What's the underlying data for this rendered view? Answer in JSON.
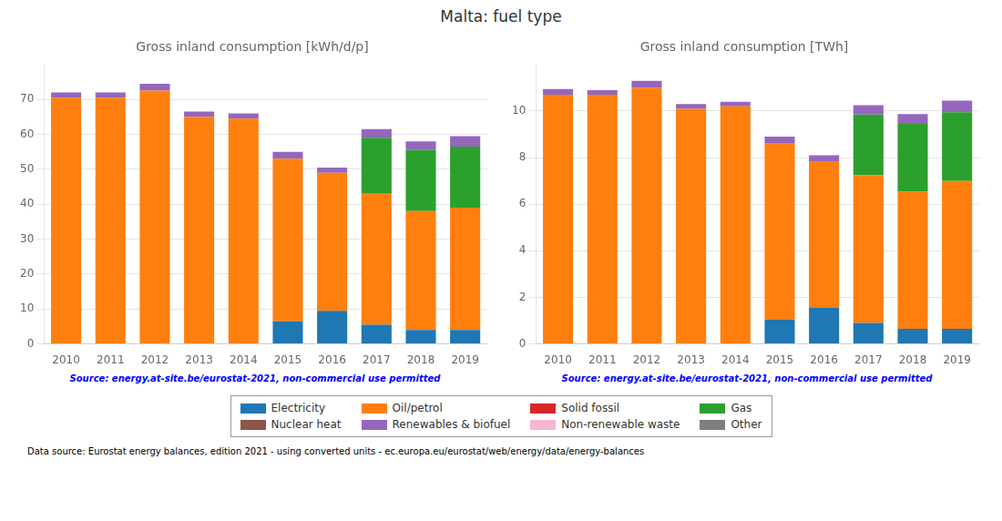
{
  "title": "Malta: fuel type",
  "annotations": [
    "Data source: Eurostat energy balances, edition 2021 - using converted units - ec.europa.eu/eurostat/web/energy/data/energy-balances"
  ],
  "legend": "bottom",
  "chart_data": [
    {
      "type": "bar",
      "stacked": true,
      "grid": true,
      "title": "Gross inland consumption [kWh/d/p]",
      "annotations": [
        "Source: energy.at-site.be/eurostat-2021, non-commercial use permitted"
      ],
      "categories": [
        2010,
        2011,
        2012,
        2013,
        2014,
        2015,
        2016,
        2017,
        2018,
        2019
      ],
      "series": [
        {
          "name": "Electricity",
          "color": "#1f77b4",
          "values": [
            0,
            0,
            0,
            0,
            0,
            6.5,
            9.5,
            5.5,
            4.0,
            4.0
          ]
        },
        {
          "name": "Oil/petrol",
          "color": "#ff7f0e",
          "values": [
            70.5,
            70.5,
            72.5,
            65.0,
            64.5,
            46.5,
            39.5,
            37.5,
            34.0,
            35.0
          ]
        },
        {
          "name": "Solid fossil",
          "color": "#d62728",
          "values": [
            0,
            0,
            0,
            0,
            0,
            0,
            0,
            0,
            0,
            0
          ]
        },
        {
          "name": "Gas",
          "color": "#2ca02c",
          "values": [
            0,
            0,
            0,
            0,
            0,
            0,
            0,
            16.0,
            17.5,
            17.5
          ]
        },
        {
          "name": "Nuclear heat",
          "color": "#8c564b",
          "values": [
            0,
            0,
            0,
            0,
            0,
            0,
            0,
            0,
            0,
            0
          ]
        },
        {
          "name": "Renewables & biofuel",
          "color": "#9467bd",
          "values": [
            1.5,
            1.5,
            2.0,
            1.5,
            1.5,
            2.0,
            1.5,
            2.5,
            2.5,
            3.0
          ]
        },
        {
          "name": "Non-renewable waste",
          "color": "#f7b6d2",
          "values": [
            0,
            0,
            0,
            0,
            0,
            0,
            0,
            0,
            0,
            0
          ]
        },
        {
          "name": "Other",
          "color": "#7f7f7f",
          "values": [
            0,
            0,
            0,
            0,
            0,
            0,
            0,
            0,
            0,
            0
          ]
        }
      ],
      "ylim": [
        0,
        80
      ],
      "yticks": [
        0,
        10,
        20,
        30,
        40,
        50,
        60,
        70
      ]
    },
    {
      "type": "bar",
      "stacked": true,
      "grid": true,
      "title": "Gross inland consumption [TWh]",
      "annotations": [
        "Source: energy.at-site.be/eurostat-2021, non-commercial use permitted"
      ],
      "categories": [
        2010,
        2011,
        2012,
        2013,
        2014,
        2015,
        2016,
        2017,
        2018,
        2019
      ],
      "series": [
        {
          "name": "Electricity",
          "color": "#1f77b4",
          "values": [
            0,
            0,
            0,
            0,
            0,
            1.05,
            1.55,
            0.9,
            0.65,
            0.65
          ]
        },
        {
          "name": "Oil/petrol",
          "color": "#ff7f0e",
          "values": [
            10.7,
            10.7,
            11.0,
            10.1,
            10.2,
            7.55,
            6.3,
            6.35,
            5.9,
            6.35
          ]
        },
        {
          "name": "Solid fossil",
          "color": "#d62728",
          "values": [
            0,
            0,
            0,
            0,
            0,
            0,
            0,
            0,
            0,
            0
          ]
        },
        {
          "name": "Gas",
          "color": "#2ca02c",
          "values": [
            0,
            0,
            0,
            0,
            0,
            0,
            0,
            2.6,
            2.9,
            2.95
          ]
        },
        {
          "name": "Nuclear heat",
          "color": "#8c564b",
          "values": [
            0,
            0,
            0,
            0,
            0,
            0,
            0,
            0,
            0,
            0
          ]
        },
        {
          "name": "Renewables & biofuel",
          "color": "#9467bd",
          "values": [
            0.25,
            0.2,
            0.3,
            0.2,
            0.2,
            0.3,
            0.25,
            0.4,
            0.42,
            0.5
          ]
        },
        {
          "name": "Non-renewable waste",
          "color": "#f7b6d2",
          "values": [
            0,
            0,
            0,
            0,
            0,
            0,
            0,
            0,
            0,
            0
          ]
        },
        {
          "name": "Other",
          "color": "#7f7f7f",
          "values": [
            0,
            0,
            0,
            0,
            0,
            0,
            0,
            0,
            0,
            0
          ]
        }
      ],
      "ylim": [
        0,
        12
      ],
      "yticks": [
        0,
        2,
        4,
        6,
        8,
        10
      ]
    }
  ]
}
